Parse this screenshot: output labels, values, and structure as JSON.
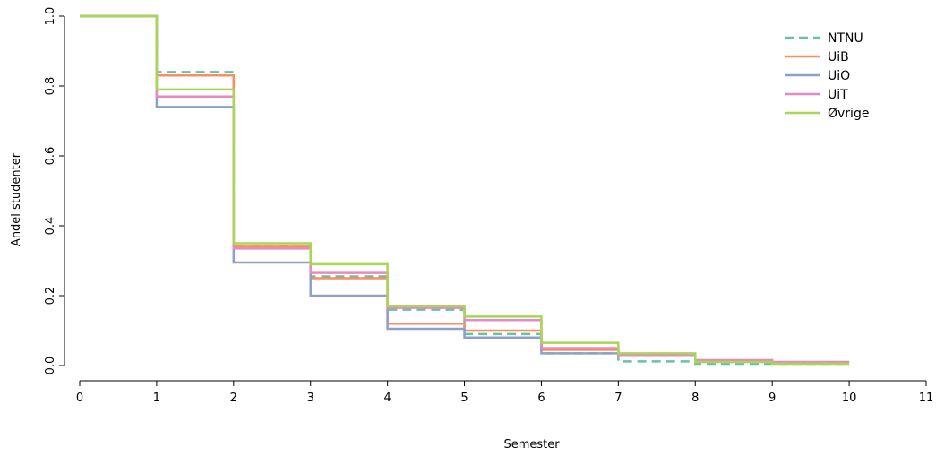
{
  "chart_data": {
    "type": "line",
    "step": true,
    "title": "",
    "xlabel": "Semester",
    "ylabel": "Andel studenter",
    "xlim": [
      0,
      11
    ],
    "ylim": [
      0,
      1
    ],
    "xticks": [
      0,
      1,
      2,
      3,
      4,
      5,
      6,
      7,
      8,
      9,
      10,
      11
    ],
    "yticks": [
      0.0,
      0.2,
      0.4,
      0.6,
      0.8,
      1.0
    ],
    "ytick_labels": [
      "0.0",
      "0.2",
      "0.4",
      "0.6",
      "0.8",
      "1.0"
    ],
    "legend": "top-right",
    "grid": false,
    "x": [
      0,
      1,
      2,
      3,
      4,
      5,
      6,
      7,
      8,
      9,
      10
    ],
    "series": [
      {
        "name": "NTNU",
        "color": "#66c2a5",
        "dash": "dashed",
        "values": [
          1.0,
          0.84,
          0.34,
          0.255,
          0.16,
          0.09,
          0.035,
          0.012,
          0.005,
          0.005,
          0.005
        ]
      },
      {
        "name": "UiB",
        "color": "#fc8d62",
        "dash": "solid",
        "values": [
          1.0,
          0.83,
          0.34,
          0.25,
          0.12,
          0.1,
          0.045,
          0.03,
          0.015,
          0.01,
          0.01
        ]
      },
      {
        "name": "UiO",
        "color": "#8da0cb",
        "dash": "solid",
        "values": [
          1.0,
          0.74,
          0.295,
          0.2,
          0.105,
          0.08,
          0.035,
          0.03,
          0.015,
          0.01,
          0.01
        ]
      },
      {
        "name": "UiT",
        "color": "#e78ac3",
        "dash": "solid",
        "values": [
          1.0,
          0.77,
          0.335,
          0.265,
          0.165,
          0.13,
          0.05,
          0.03,
          0.015,
          0.01,
          0.005
        ]
      },
      {
        "name": "Øvrige",
        "color": "#a6d854",
        "dash": "solid",
        "values": [
          1.0,
          0.79,
          0.35,
          0.29,
          0.17,
          0.14,
          0.065,
          0.035,
          0.01,
          0.005,
          0.005
        ]
      }
    ]
  }
}
